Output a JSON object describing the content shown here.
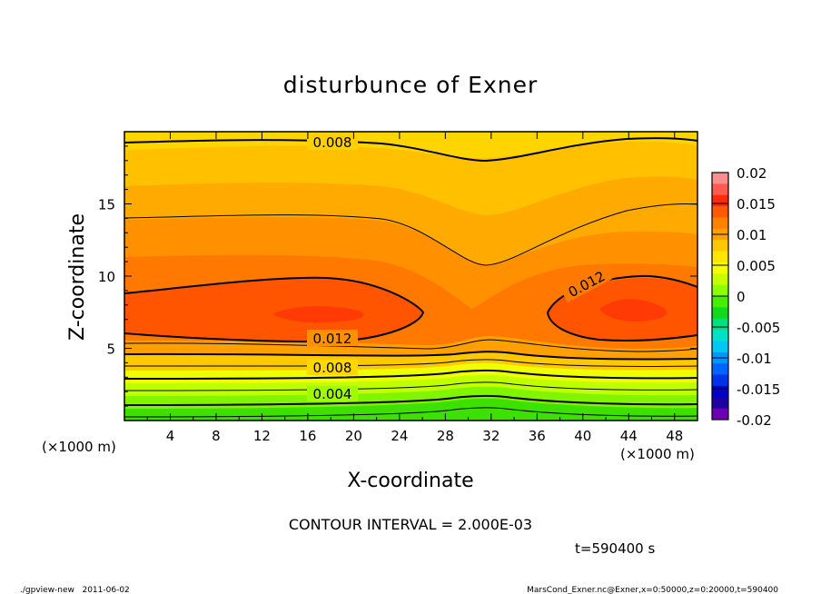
{
  "chart_data": {
    "type": "contour",
    "title": "disturbunce of Exner",
    "xlabel": "X-coordinate",
    "ylabel": "Z-coordinate",
    "x_unit_left": "(×1000 m)",
    "x_unit_right": "(×1000 m)",
    "xlim": [
      0,
      50
    ],
    "ylim": [
      0,
      20
    ],
    "x_ticks": [
      4,
      8,
      12,
      16,
      20,
      24,
      28,
      32,
      36,
      40,
      44,
      48
    ],
    "y_ticks": [
      5,
      10,
      15
    ],
    "contour_interval_text": "CONTOUR INTERVAL = 2.000E-03",
    "time_text": "t=590400 s",
    "contour_labels": [
      "0.008",
      "0.012",
      "0.012",
      "0.008",
      "0.004"
    ],
    "colorbar": {
      "ticks": [
        "0.02",
        "0.015",
        "0.01",
        "0.005",
        "0",
        "-0.005",
        "-0.01",
        "-0.015",
        "-0.02"
      ],
      "levels": [
        0.02,
        0.015,
        0.01,
        0.005,
        0,
        -0.005,
        -0.01,
        -0.015,
        -0.02
      ],
      "colors": [
        "#f98e8e",
        "#ff5a50",
        "#fe2a0c",
        "#fe5a05",
        "#fe8200",
        "#ffa000",
        "#ffc800",
        "#ffe600",
        "#f5ff00",
        "#c8ff00",
        "#8cff00",
        "#46ee00",
        "#14d81e",
        "#00e082",
        "#00e1c8",
        "#00c8f0",
        "#0096ff",
        "#0064ff",
        "#0032e6",
        "#0000c8",
        "#1e00a0",
        "#6c00b4"
      ]
    },
    "fields": [
      {
        "region": "z 0-1 km",
        "value": 0.001
      },
      {
        "region": "z 1-3 km",
        "value": 0.004
      },
      {
        "region": "z 3-5 km",
        "value": 0.008
      },
      {
        "region": "z 6-10 km core x 8-26",
        "value": 0.013
      },
      {
        "region": "z 6-10 km core x 38-50",
        "value": 0.013
      },
      {
        "region": "z 10-15 km",
        "value": 0.01
      },
      {
        "region": "z 15-20 km",
        "value": 0.007
      }
    ]
  },
  "footer": {
    "left": "./gpview-new   2011-06-02",
    "right": "MarsCond_Exner.nc@Exner,x=0:50000,z=0:20000,t=590400"
  }
}
